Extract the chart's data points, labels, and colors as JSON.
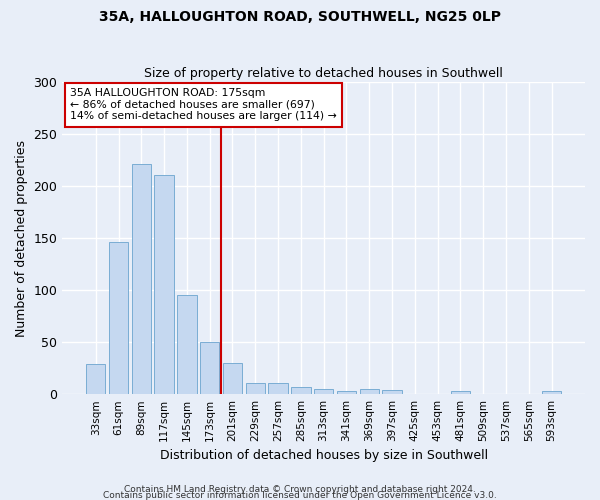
{
  "title1": "35A, HALLOUGHTON ROAD, SOUTHWELL, NG25 0LP",
  "title2": "Size of property relative to detached houses in Southwell",
  "xlabel": "Distribution of detached houses by size in Southwell",
  "ylabel": "Number of detached properties",
  "bar_color": "#c5d8f0",
  "bar_edge_color": "#7aadd4",
  "categories": [
    "33sqm",
    "61sqm",
    "89sqm",
    "117sqm",
    "145sqm",
    "173sqm",
    "201sqm",
    "229sqm",
    "257sqm",
    "285sqm",
    "313sqm",
    "341sqm",
    "369sqm",
    "397sqm",
    "425sqm",
    "453sqm",
    "481sqm",
    "509sqm",
    "537sqm",
    "565sqm",
    "593sqm"
  ],
  "values": [
    29,
    146,
    221,
    211,
    95,
    50,
    30,
    11,
    11,
    7,
    5,
    3,
    5,
    4,
    0,
    0,
    3,
    0,
    0,
    0,
    3
  ],
  "ylim": [
    0,
    300
  ],
  "yticks": [
    0,
    50,
    100,
    150,
    200,
    250,
    300
  ],
  "vline_x": 5.5,
  "vline_color": "#cc0000",
  "annotation_text": "35A HALLOUGHTON ROAD: 175sqm\n← 86% of detached houses are smaller (697)\n14% of semi-detached houses are larger (114) →",
  "annotation_box_color": "#ffffff",
  "annotation_box_edge": "#cc0000",
  "footnote1": "Contains HM Land Registry data © Crown copyright and database right 2024.",
  "footnote2": "Contains public sector information licensed under the Open Government Licence v3.0.",
  "bg_color": "#e8eef8",
  "plot_bg_color": "#e8eef8"
}
